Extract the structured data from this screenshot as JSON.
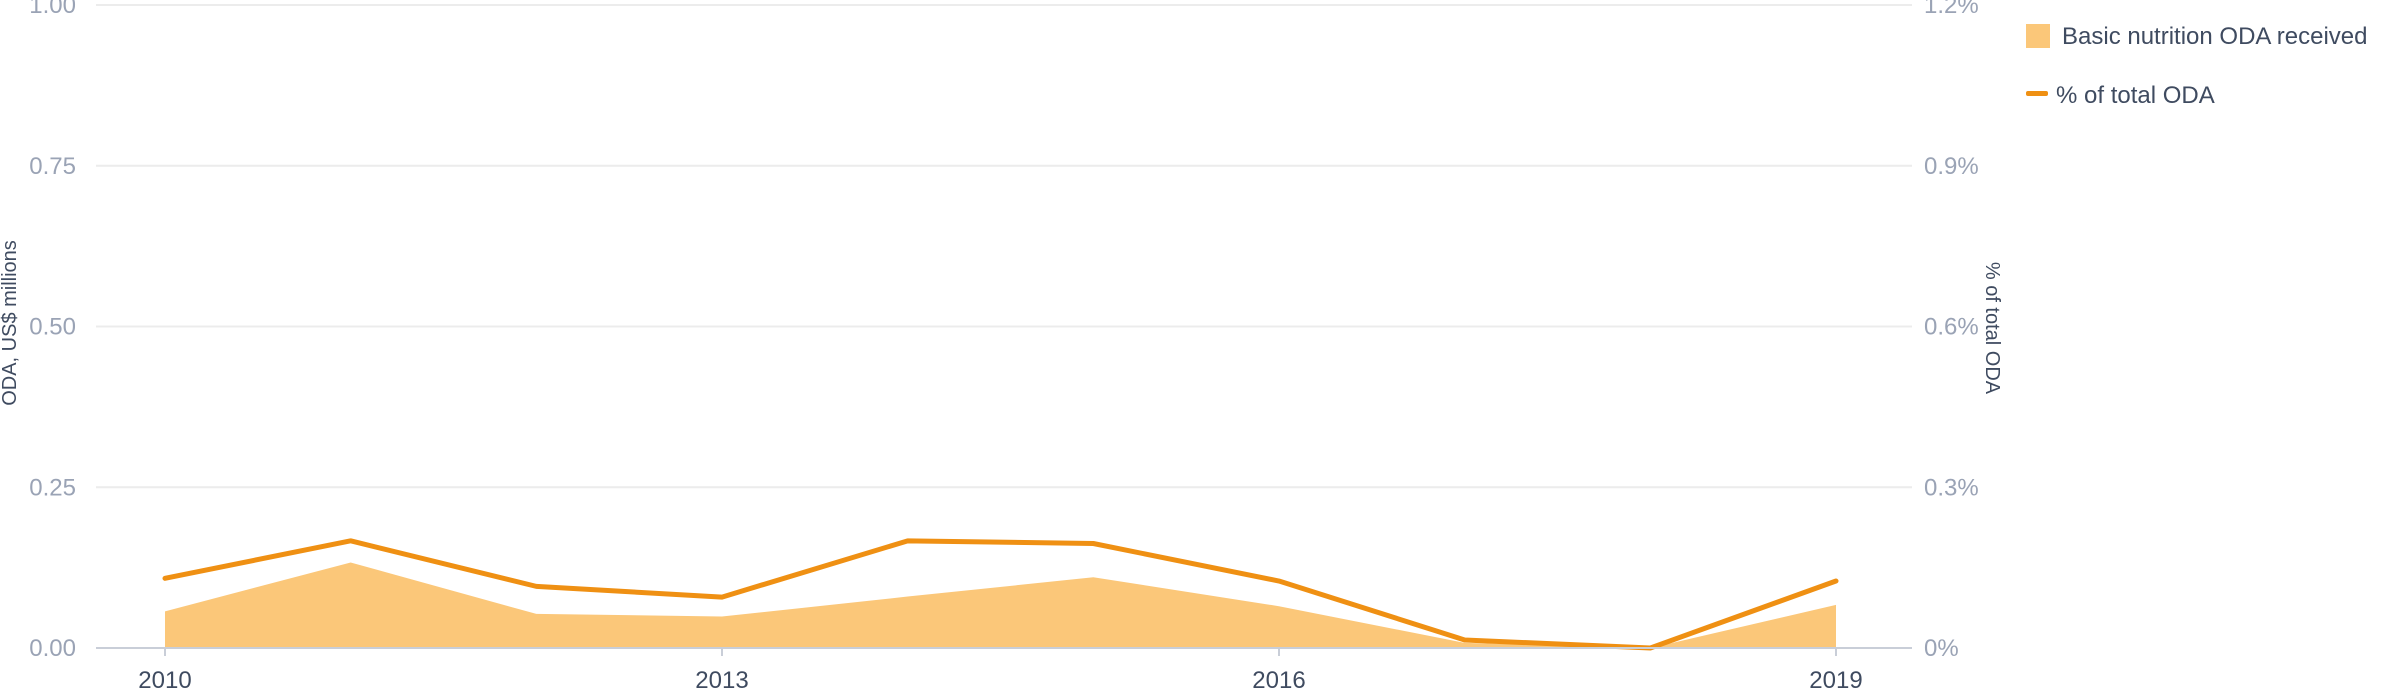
{
  "chart_data": {
    "type": "area",
    "x": [
      2010,
      2011,
      2012,
      2013,
      2014,
      2015,
      2016,
      2017,
      2018,
      2019
    ],
    "x_ticks": [
      "2010",
      "2013",
      "2016",
      "2019"
    ],
    "y_left": {
      "label": "ODA, US$ millions",
      "ticks": [
        "0.00",
        "0.25",
        "0.50",
        "0.75",
        "1.00"
      ],
      "range": [
        0,
        1
      ]
    },
    "y_right": {
      "label": "% of total ODA",
      "ticks": [
        "0%",
        "0.3%",
        "0.6%",
        "0.9%",
        "1.2%"
      ],
      "range": [
        0,
        1.2
      ]
    },
    "series": [
      {
        "name": "Basic nutrition ODA received",
        "type": "area",
        "axis": "left",
        "color": "#fbc779",
        "values": [
          0.057,
          0.133,
          0.053,
          0.049,
          0.08,
          0.11,
          0.065,
          0.008,
          0.0,
          0.067
        ]
      },
      {
        "name": "% of total ODA",
        "type": "line",
        "axis": "right",
        "color": "#ef9013",
        "values": [
          0.13,
          0.2,
          0.115,
          0.095,
          0.2,
          0.195,
          0.125,
          0.015,
          0.0,
          0.125
        ]
      }
    ],
    "legend_position": "top-right",
    "grid": true
  }
}
